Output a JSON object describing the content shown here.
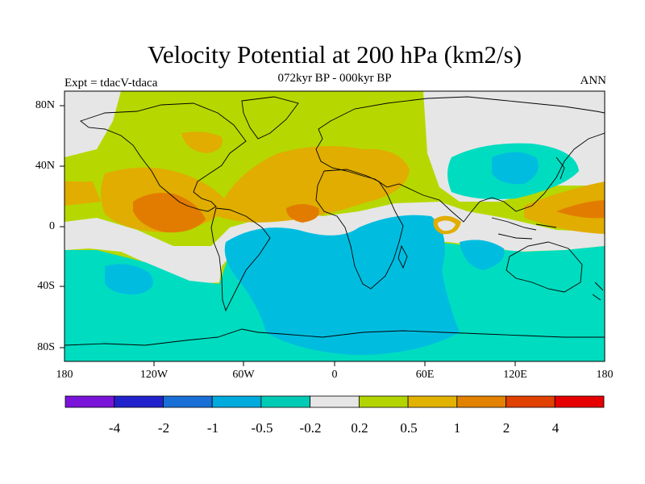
{
  "title": "Velocity Potential at 200 hPa (km2/s)",
  "subtitle": "072kyr BP - 000kyr BP",
  "experiment": "Expt = tdacV-tdaca",
  "season": "ANN",
  "lat_ticks": [
    "80N",
    "40N",
    "0",
    "40S",
    "80S"
  ],
  "lon_ticks": [
    "180",
    "120W",
    "60W",
    "0",
    "60E",
    "120E",
    "180"
  ],
  "colorbar": {
    "labels": [
      "-4",
      "-2",
      "-1",
      "-0.5",
      "-0.2",
      "0.2",
      "0.5",
      "1",
      "2",
      "4"
    ],
    "colors": [
      "#7a14d9",
      "#2222cc",
      "#1a6fd6",
      "#00aadd",
      "#00ccb5",
      "#e6e6e6",
      "#b4d400",
      "#e2b200",
      "#e28200",
      "#e04000",
      "#e60000"
    ]
  },
  "field_colors": {
    "neg2": "#00bde0",
    "neg1": "#00dcc0",
    "zero": "#e6e6e6",
    "pos1": "#b6d800",
    "pos2": "#e0ad00",
    "pos3": "#e27c00"
  }
}
